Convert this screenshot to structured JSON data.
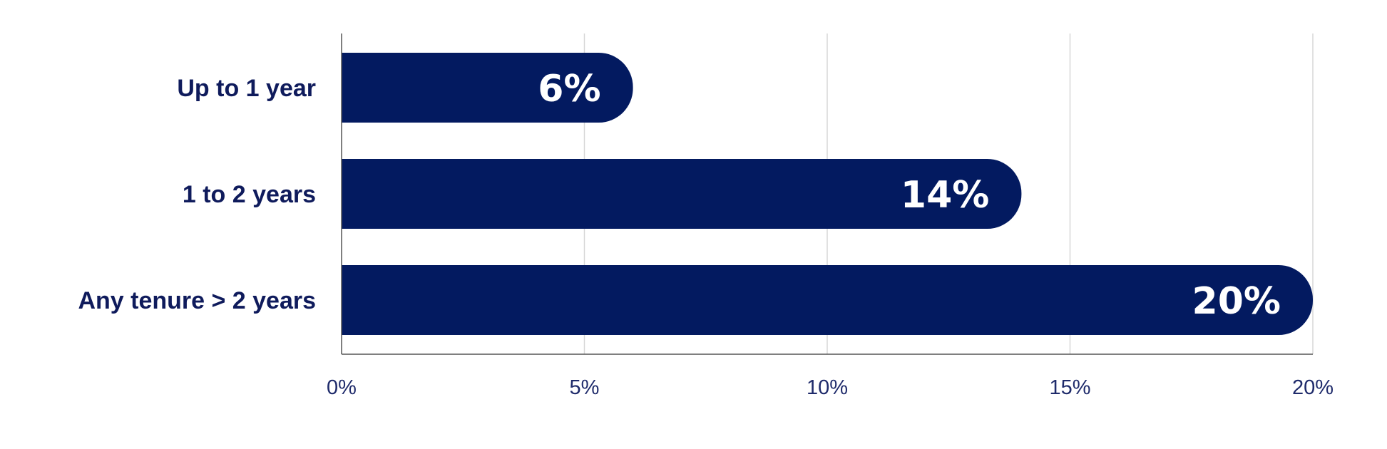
{
  "chart_data": {
    "type": "bar",
    "orientation": "horizontal",
    "categories": [
      "Up to 1 year",
      "1 to 2 years",
      "Any tenure > 2 years"
    ],
    "values": [
      6,
      14,
      20
    ],
    "value_labels": [
      "6%",
      "14%",
      "20%"
    ],
    "xlim": [
      0,
      20
    ],
    "x_ticks": [
      0,
      5,
      10,
      15,
      20
    ],
    "x_tick_labels": [
      "0%",
      "5%",
      "10%",
      "15%",
      "20%"
    ],
    "grid": "vertical",
    "legend": "none"
  },
  "colors": {
    "bar": "#031a60",
    "category_text": "#0f1b5c",
    "tick_text": "#1f2b6b",
    "value_text": "#ffffff",
    "grid": "#d7d7d7",
    "axis": "#555555"
  }
}
